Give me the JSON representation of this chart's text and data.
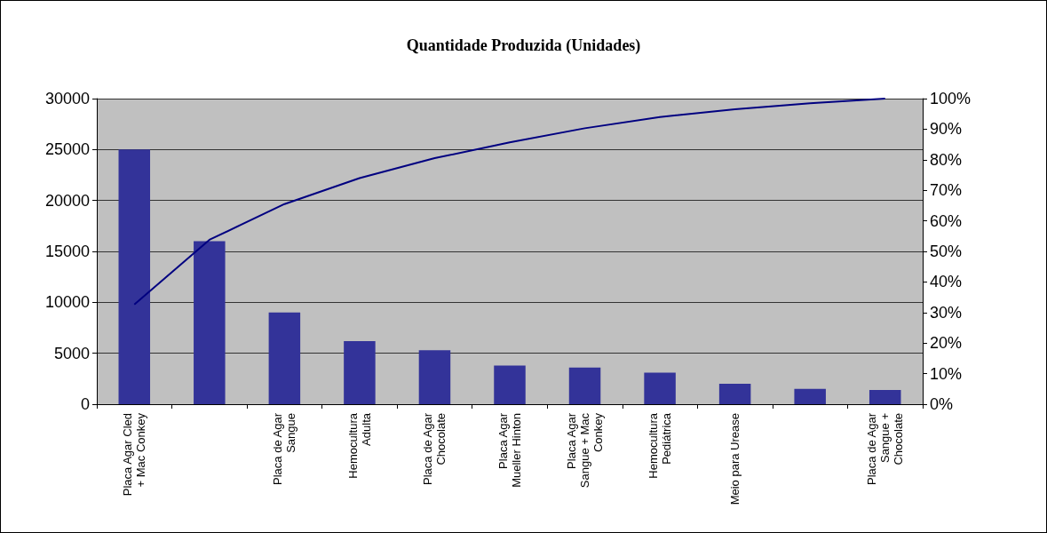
{
  "chart_data": {
    "type": "bar",
    "title": "Quantidade Produzida (Unidades)",
    "categories": [
      "Placa Agar Cled\n+ Mac Conkey",
      null,
      "Placa de Agar\nSangue",
      "Hemocultura\nAdulta",
      "Placa de Agar\nChocolate",
      "Placa Agar\nMueller Hinton",
      "Placa Agar\nSangue + Mac\nConkey",
      "Hemocultura\nPediátrica",
      "Meio para Urease",
      null,
      "Placa de Agar\nSangue +\nChocolate"
    ],
    "series": [
      {
        "color": "#333399",
        "values": [
          25000,
          16000,
          9000,
          6200,
          5300,
          3800,
          3600,
          3100,
          2000,
          1500,
          1400
        ]
      },
      {
        "type": "line",
        "axis": "y2",
        "color": "#000080",
        "values": [
          32.6,
          53.8,
          65.5,
          74.0,
          80.5,
          85.7,
          90.3,
          94.0,
          96.5,
          98.5,
          100
        ]
      }
    ],
    "ylim": [
      0,
      30000
    ],
    "yticks": [
      0,
      5000,
      10000,
      15000,
      20000,
      25000,
      30000
    ],
    "y2lim": [
      0,
      100
    ],
    "y2ticks": [
      {
        "value": 0,
        "label": "0%"
      },
      {
        "value": 10,
        "label": "10%"
      },
      {
        "value": 20,
        "label": "20%"
      },
      {
        "value": 30,
        "label": "30%"
      },
      {
        "value": 40,
        "label": "40%"
      },
      {
        "value": 50,
        "label": "50%"
      },
      {
        "value": 60,
        "label": "60%"
      },
      {
        "value": 70,
        "label": "70%"
      },
      {
        "value": 80,
        "label": "80%"
      },
      {
        "value": 90,
        "label": "90%"
      },
      {
        "value": 100,
        "label": "100%"
      }
    ],
    "grid": "y",
    "marker": "none",
    "line_style": "solid"
  }
}
